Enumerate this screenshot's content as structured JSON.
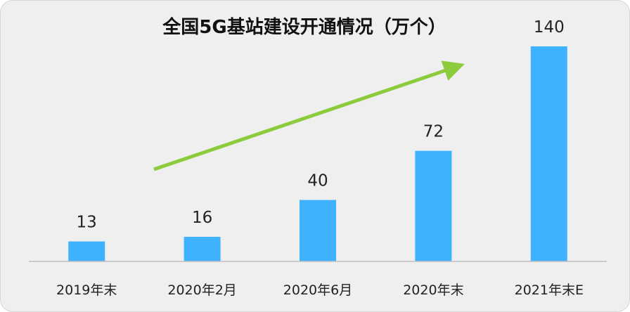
{
  "chart_data": {
    "type": "bar",
    "title": "全国5G基站建设开通情况（万个）",
    "categories": [
      "2019年末",
      "2020年2月",
      "2020年6月",
      "2020年末",
      "2021年末E"
    ],
    "values": [
      13,
      16,
      40,
      72,
      140
    ],
    "ylim": [
      0,
      140
    ],
    "grid": false,
    "legend": "none",
    "colors": {
      "bar": "#3eb2ff",
      "trend_arrow": "#8ccc3c",
      "axis": "#bfbfbf",
      "background": "#efefef"
    }
  }
}
